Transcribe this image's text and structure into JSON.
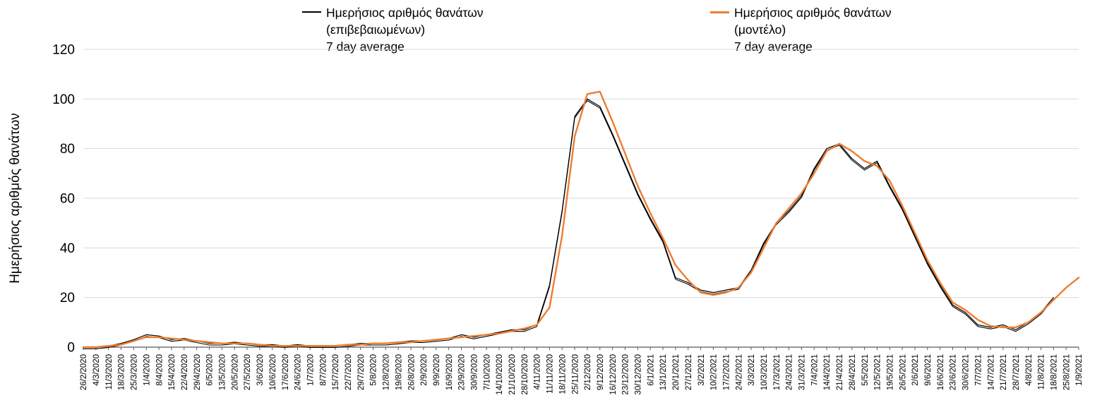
{
  "chart": {
    "ylabel": "Ημερήσιος αριθμός θανάτων"
  },
  "legend": {
    "confirmed": {
      "line1": "Ημερήσιος αριθμός θανάτων",
      "line2": "(επιβεβαιωμένων)",
      "line3": "7 day average",
      "color": "#000000"
    },
    "model": {
      "line1": "Ημερήσιος αριθμός θανάτων",
      "line2": "(μοντέλο)",
      "line3": "7 day average",
      "color": "#ED7D31"
    }
  },
  "chart_data": {
    "type": "line",
    "title": "",
    "xlabel": "",
    "ylabel": "Ημερήσιος αριθμός θανάτων",
    "ylim": [
      0,
      120
    ],
    "ytick_step": 20,
    "grid": true,
    "legend_position": "top",
    "grid_color": "#D9D9D9",
    "axis_color": "#595959",
    "categories": [
      "26/2/2020",
      "4/3/2020",
      "11/3/2020",
      "18/3/2020",
      "25/3/2020",
      "1/4/2020",
      "8/4/2020",
      "15/4/2020",
      "22/4/2020",
      "29/4/2020",
      "6/5/2020",
      "13/5/2020",
      "20/5/2020",
      "27/5/2020",
      "3/6/2020",
      "10/6/2020",
      "17/6/2020",
      "24/6/2020",
      "1/7/2020",
      "8/7/2020",
      "15/7/2020",
      "22/7/2020",
      "29/7/2020",
      "5/8/2020",
      "12/8/2020",
      "19/8/2020",
      "26/8/2020",
      "2/9/2020",
      "9/9/2020",
      "16/9/2020",
      "23/9/2020",
      "30/9/2020",
      "7/10/2020",
      "14/10/2020",
      "21/10/2020",
      "28/10/2020",
      "4/11/2020",
      "11/11/2020",
      "18/11/2020",
      "25/11/2020",
      "2/12/2020",
      "9/12/2020",
      "16/12/2020",
      "23/12/2020",
      "30/12/2020",
      "6/1/2021",
      "13/1/2021",
      "20/1/2021",
      "27/1/2021",
      "3/2/2021",
      "10/2/2021",
      "17/2/2021",
      "24/2/2021",
      "3/3/2021",
      "10/3/2021",
      "17/3/2021",
      "24/3/2021",
      "31/3/2021",
      "7/4/2021",
      "14/4/2021",
      "21/4/2021",
      "28/4/2021",
      "5/5/2021",
      "12/5/2021",
      "19/5/2021",
      "26/5/2021",
      "2/6/2021",
      "9/6/2021",
      "16/6/2021",
      "23/6/2021",
      "30/6/2021",
      "7/7/2021",
      "14/7/2021",
      "21/7/2021",
      "28/7/2021",
      "4/8/2021",
      "11/8/2021",
      "18/8/2021",
      "25/8/2021",
      "1/9/2021"
    ],
    "series": [
      {
        "name": "Ημερήσιος αριθμός θανάτων (επιβεβαιωμένων) 7 day average",
        "color": "#000000",
        "values": [
          0,
          0,
          0.5,
          1.5,
          3,
          5,
          4.5,
          3,
          3.5,
          2.5,
          1.5,
          1.5,
          2,
          1.5,
          1,
          1,
          0.5,
          1,
          0.5,
          0.5,
          0.5,
          1,
          1.5,
          1.5,
          1.5,
          2,
          2.5,
          2.5,
          3,
          3.5,
          5,
          4,
          5,
          6,
          7,
          7,
          9,
          25,
          55,
          93,
          100,
          97,
          86,
          74,
          62,
          52,
          43,
          28,
          26,
          23,
          22,
          23,
          24,
          31,
          42,
          50,
          55,
          61,
          72,
          80,
          82,
          76,
          72,
          75,
          65,
          56,
          45,
          34,
          25,
          17,
          14,
          9,
          8,
          9,
          7,
          10,
          14,
          20,
          null,
          null
        ]
      },
      {
        "name": "Ημερήσιος αριθμός θανάτων (μοντέλο) 7 day average",
        "color": "#ED7D31",
        "values": [
          0,
          0,
          0.5,
          1,
          2.5,
          4,
          4,
          3.5,
          3,
          2.5,
          2,
          1.5,
          1.5,
          1.5,
          1,
          0.5,
          0.5,
          0.5,
          0.5,
          0.5,
          0.5,
          1,
          1,
          1.5,
          1.5,
          2,
          2,
          2.5,
          3,
          3.5,
          4,
          4.5,
          5,
          5.5,
          6.5,
          7.5,
          9,
          16,
          45,
          85,
          102,
          103,
          91,
          78,
          65,
          54,
          44,
          33,
          27,
          22,
          21,
          22,
          24,
          30,
          40,
          50,
          56,
          62,
          70,
          79,
          82,
          79,
          75,
          73,
          67,
          57,
          46,
          35,
          26,
          18,
          15,
          11,
          8.5,
          8,
          8,
          10,
          14,
          19,
          24,
          28
        ]
      }
    ]
  }
}
